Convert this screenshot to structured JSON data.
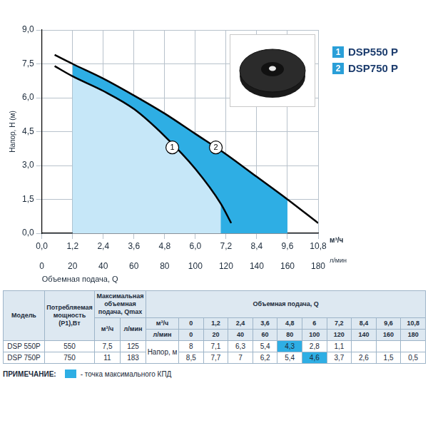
{
  "chart_data": {
    "type": "line",
    "x_label": "Объемная подача, Q",
    "x_unit": "м³/ч",
    "x2_unit": "л/мин",
    "y_label": "Напор, H (м)",
    "xlim": [
      0,
      10.8
    ],
    "xticks": [
      {
        "value": 0,
        "label": "0,0"
      },
      {
        "value": 1.2,
        "label": "1,2"
      },
      {
        "value": 2.4,
        "label": "2,4"
      },
      {
        "value": 3.6,
        "label": "3,6"
      },
      {
        "value": 4.8,
        "label": "4,8"
      },
      {
        "value": 6.0,
        "label": "6,0"
      },
      {
        "value": 7.2,
        "label": "7,2"
      },
      {
        "value": 8.4,
        "label": "8,4"
      },
      {
        "value": 9.6,
        "label": "9,6"
      },
      {
        "value": 10.8,
        "label": "10,8"
      }
    ],
    "x2lim": [
      0,
      180
    ],
    "x2ticks": [
      0,
      20,
      40,
      60,
      80,
      100,
      120,
      140,
      160,
      180
    ],
    "ylim": [
      0,
      9
    ],
    "yticks": [
      {
        "value": 0,
        "label": "0,0"
      },
      {
        "value": 1.5,
        "label": "1,5"
      },
      {
        "value": 3.0,
        "label": "3,0"
      },
      {
        "value": 4.5,
        "label": "4,5"
      },
      {
        "value": 6.0,
        "label": "6,0"
      },
      {
        "value": 7.5,
        "label": "7,5"
      },
      {
        "value": 9.0,
        "label": "9,0"
      }
    ],
    "grid": true,
    "legend": "right",
    "series": [
      {
        "name": "DSP550 P",
        "label": "1",
        "color": "#000000",
        "fill_color": "#c6e7f8",
        "x": [
          0.5,
          1.2,
          2.4,
          3.6,
          4.8,
          6.0,
          7.0,
          7.4
        ],
        "values": [
          7.4,
          6.95,
          6.3,
          5.5,
          4.3,
          2.85,
          1.3,
          0.45
        ],
        "operating_range": [
          1.2,
          7.0
        ],
        "label_x": 5.1,
        "label_y": 3.8
      },
      {
        "name": "DSP750 P",
        "label": "2",
        "color": "#000000",
        "fill_color": "#2eaee4",
        "x": [
          0.5,
          1.2,
          2.4,
          3.6,
          4.8,
          6.0,
          7.2,
          8.4,
          9.6,
          10.8
        ],
        "values": [
          7.9,
          7.5,
          6.85,
          6.1,
          5.3,
          4.4,
          3.5,
          2.5,
          1.5,
          0.45
        ],
        "operating_range": [
          1.2,
          9.6
        ],
        "label_x": 6.8,
        "label_y": 3.8
      }
    ]
  },
  "table": {
    "header": {
      "model": "Модель",
      "power": "Потребляемая мощность (P1),Вт",
      "qmax": "Максимальная объемная подача, Qmax",
      "qmax_units": [
        "м³/ч",
        "л/мин"
      ],
      "flow": "Объемная подача, Q"
    },
    "flow_rows": [
      {
        "unit": "м³/ч",
        "values": [
          "0",
          "1,2",
          "2,4",
          "3,6",
          "4,8",
          "6",
          "7,2",
          "8,4",
          "9,6",
          "10,8"
        ]
      },
      {
        "unit": "л/мин",
        "values": [
          "0",
          "20",
          "40",
          "60",
          "80",
          "100",
          "120",
          "140",
          "160",
          "180"
        ]
      }
    ],
    "head_label": "Напор, м",
    "rows": [
      {
        "model": "DSP 550P",
        "power": "550",
        "qmax_m3h": "7,5",
        "qmax_lmin": "125",
        "values": [
          "8",
          "7,1",
          "6,3",
          "5,4",
          "4,3",
          "2,8",
          "1,1",
          null,
          null,
          null
        ],
        "best_efficiency": "4,3"
      },
      {
        "model": "DSP 750P",
        "power": "750",
        "qmax_m3h": "11",
        "qmax_lmin": "183",
        "values": [
          "8,5",
          "7,7",
          "7",
          "6,2",
          "5,4",
          "4,6",
          "3,7",
          "2,6",
          "1,5",
          "0,5"
        ],
        "best_efficiency": "4,6"
      }
    ]
  },
  "note": {
    "label": "ПРИМЕЧАНИЕ:",
    "text": "- точка максимального КПД"
  }
}
